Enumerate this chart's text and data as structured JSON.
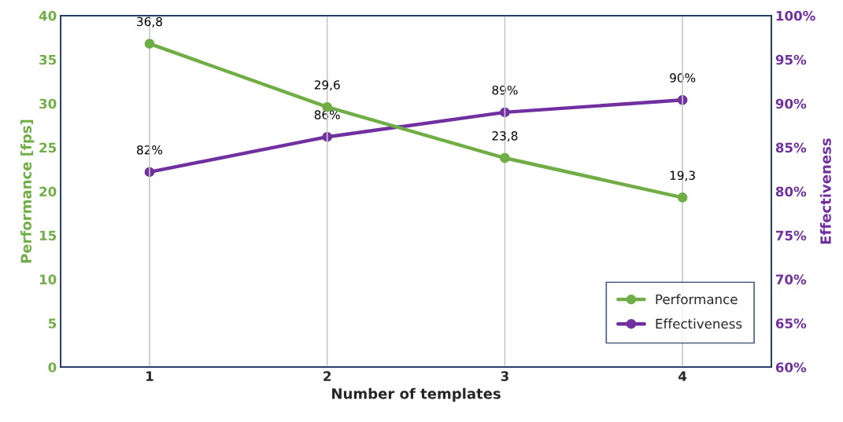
{
  "chart_data": {
    "type": "line",
    "xlabel": "Number of templates",
    "ylabel": "Performance [fps]",
    "y2label": "Effectiveness",
    "categories": [
      "1",
      "2",
      "3",
      "4"
    ],
    "series": [
      {
        "name": "Performance",
        "color": "#70ad47",
        "values": [
          36.8,
          29.6,
          23.8,
          19.3
        ],
        "value_labels": [
          "36,8",
          "29,6",
          "23,8",
          "19,3"
        ]
      },
      {
        "name": "Effectiveness",
        "color": "#7030a0",
        "axis": "y2",
        "values": [
          82.2,
          86.2,
          89.0,
          90.4
        ],
        "value_labels": [
          "82%",
          "86%",
          "89%",
          "90%"
        ]
      }
    ],
    "ylim": [
      0,
      40
    ],
    "yticks": [
      0,
      5,
      10,
      15,
      20,
      25,
      30,
      35,
      40
    ],
    "y2lim": [
      60,
      100
    ],
    "y2ticks": [
      {
        "value": 60,
        "label": "60%"
      },
      {
        "value": 65,
        "label": "65%"
      },
      {
        "value": 70,
        "label": "70%"
      },
      {
        "value": 75,
        "label": "75%"
      },
      {
        "value": 80,
        "label": "80%"
      },
      {
        "value": 85,
        "label": "85%"
      },
      {
        "value": 90,
        "label": "90%"
      },
      {
        "value": 95,
        "label": "95%"
      },
      {
        "value": 100,
        "label": "100%"
      }
    ],
    "grid": "x",
    "legend": "bottom right",
    "marker": "circle",
    "line_style": "solid"
  }
}
